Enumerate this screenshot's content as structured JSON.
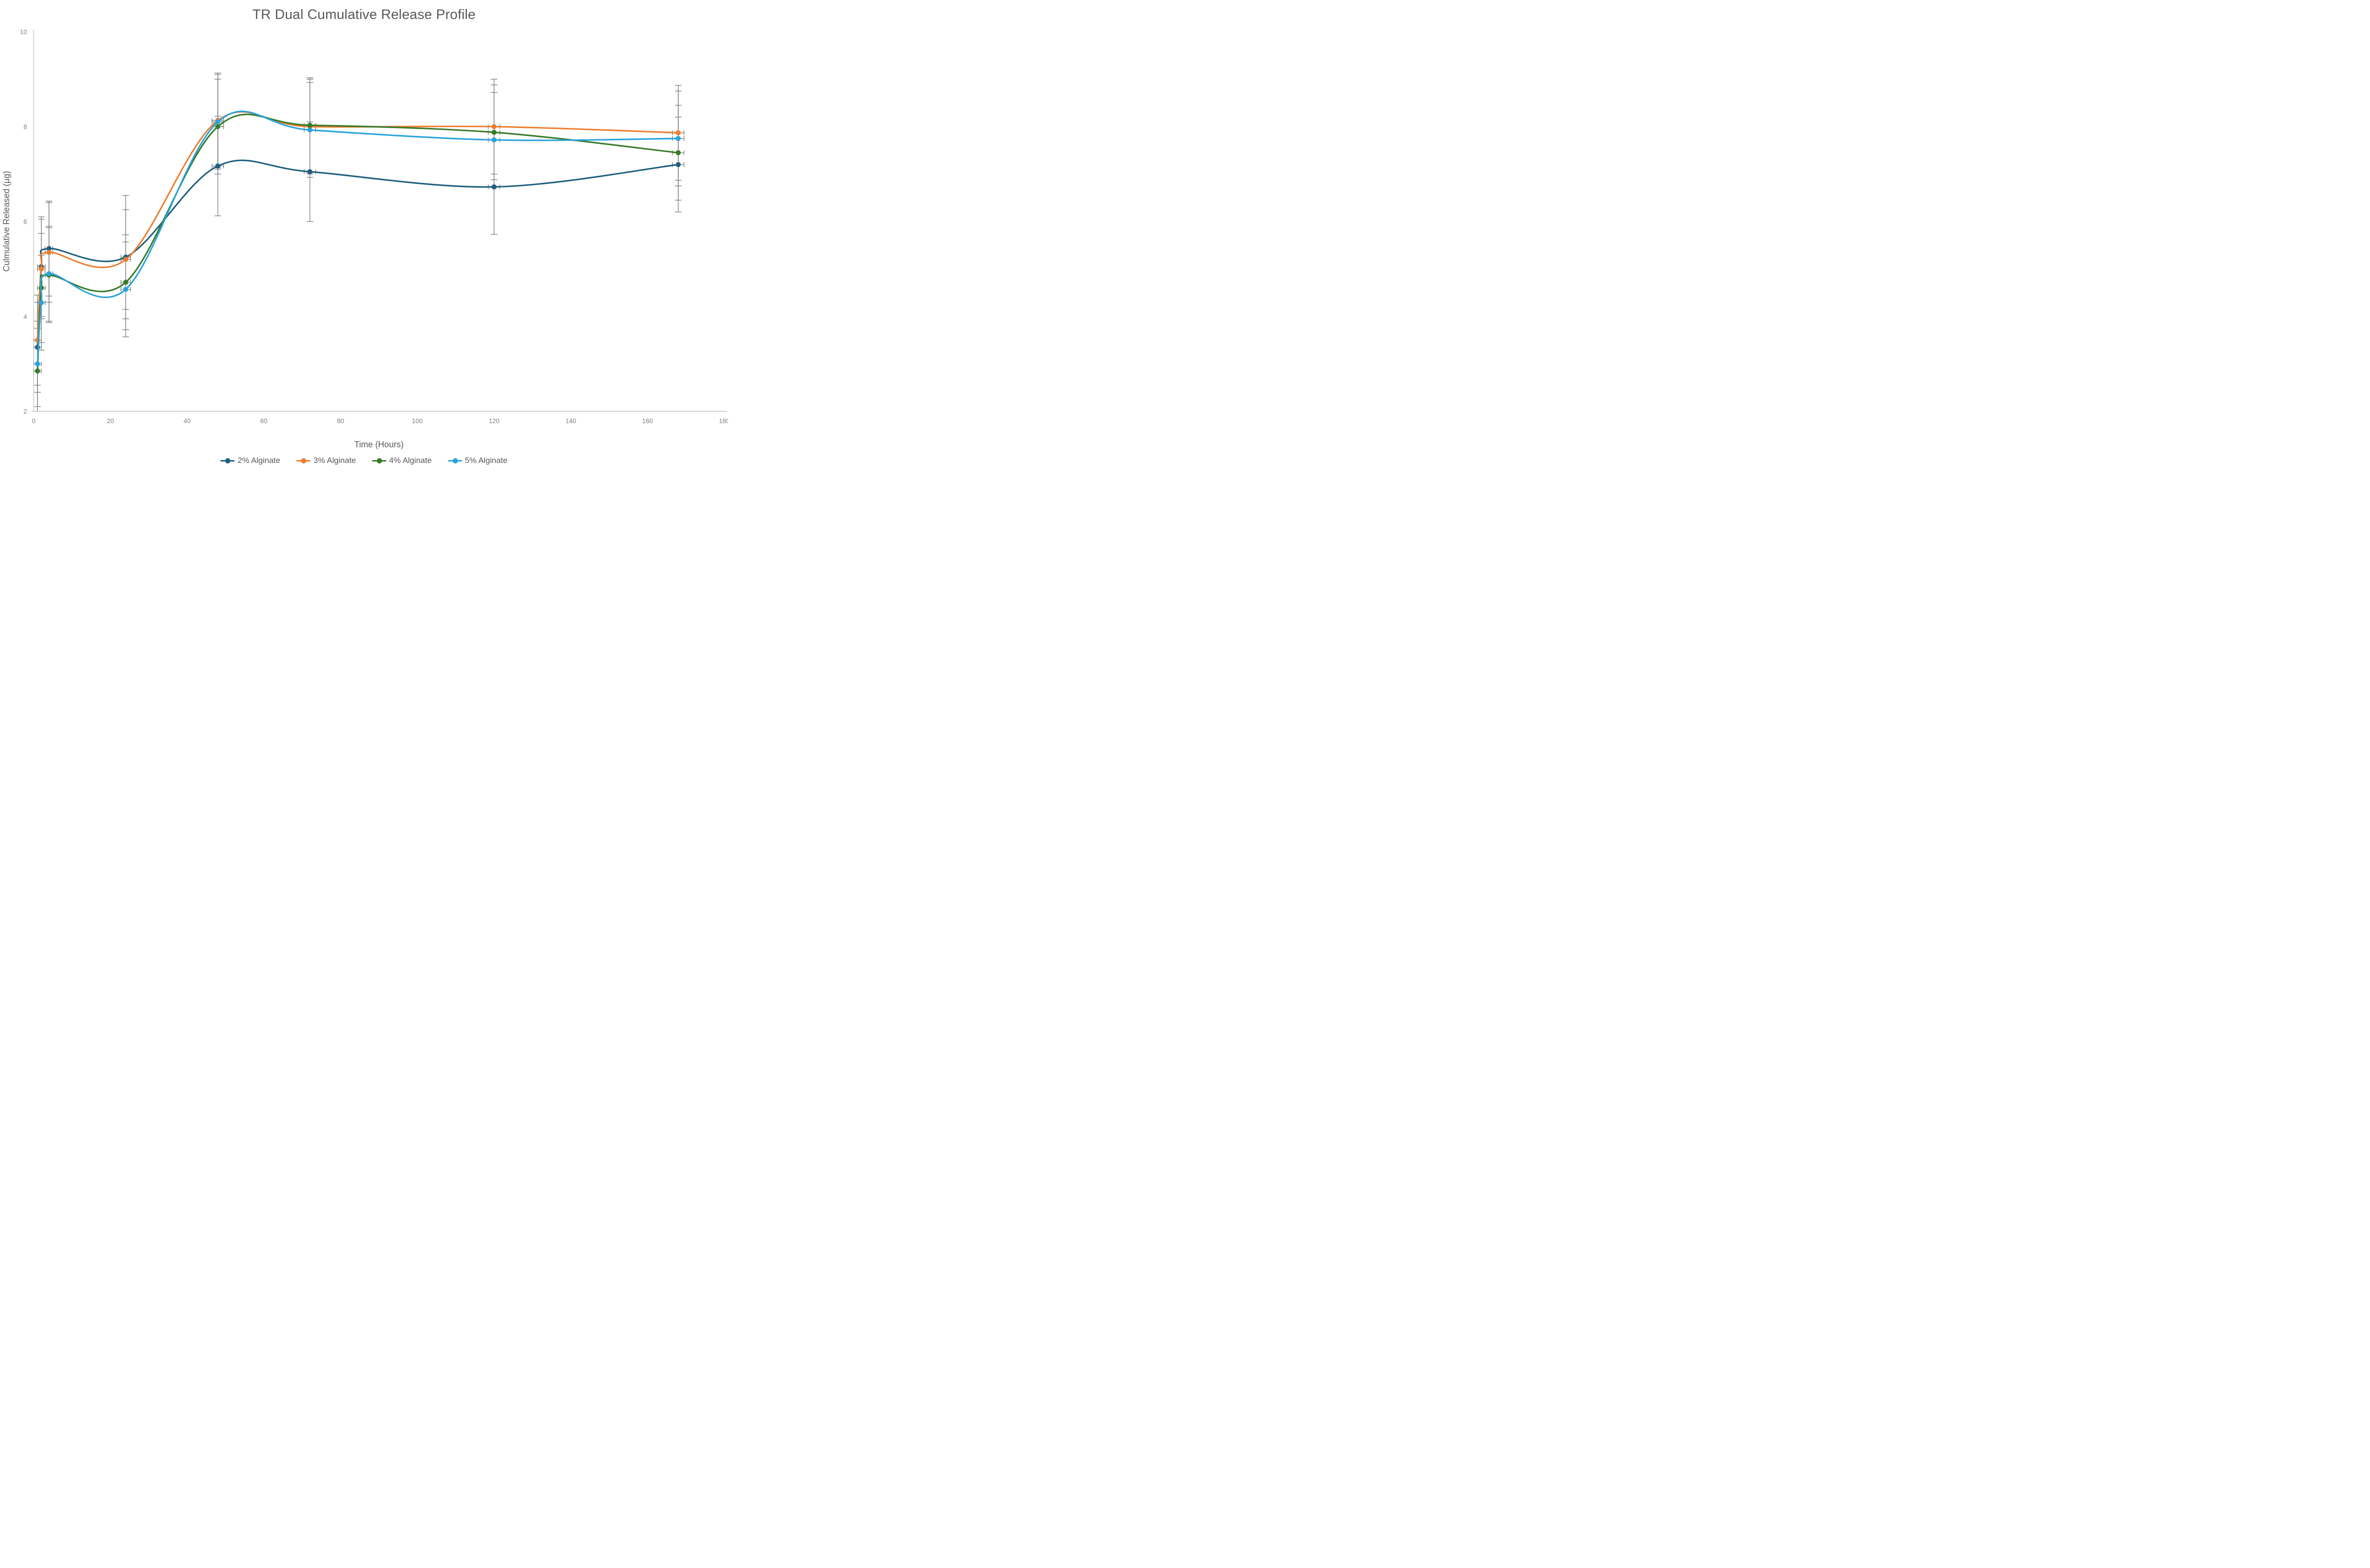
{
  "chart_data": {
    "type": "line",
    "title": "TR Dual Cumulative Release Profile",
    "xlabel": "Time (Hours)",
    "ylabel": "Culmulative Released (µg)",
    "xlim": [
      0,
      180
    ],
    "ylim": [
      2,
      10
    ],
    "x_ticks": [
      0,
      20,
      40,
      60,
      80,
      100,
      120,
      140,
      160,
      180
    ],
    "y_ticks": [
      2,
      4,
      6,
      8,
      10
    ],
    "grid": false,
    "legend_position": "bottom",
    "background_color": "#FFFFFF",
    "axis_line_color": "#D6D6D6",
    "tick_label_color": "#7F7F7F",
    "text_color": "#595959",
    "error_bar_color": "#7F7F7F",
    "x_hours": [
      1,
      2,
      4,
      24,
      48,
      72,
      120,
      168
    ],
    "series": [
      {
        "name": "2% Alginate",
        "color": "#1F5F7F",
        "values": [
          3.35,
          5.05,
          5.43,
          5.25,
          7.17,
          7.05,
          6.73,
          7.2
        ],
        "y_err": [
          0.95,
          1.05,
          1.0,
          1.3,
          1.05,
          1.05,
          1.0,
          1.0
        ],
        "x_err": [
          1.0,
          1.0,
          1.0,
          1.25,
          1.5,
          1.5,
          1.5,
          1.5
        ]
      },
      {
        "name": "3% Alginate",
        "color": "#ED7D31",
        "values": [
          3.5,
          5.0,
          5.35,
          5.2,
          8.13,
          8.0,
          8.0,
          7.87
        ],
        "y_err": [
          0.95,
          1.05,
          1.05,
          1.05,
          1.0,
          1.0,
          1.0,
          1.0
        ],
        "x_err": [
          1.0,
          1.0,
          1.0,
          1.25,
          1.5,
          1.5,
          1.5,
          1.5
        ]
      },
      {
        "name": "4% Alginate",
        "color": "#377B28",
        "values": [
          2.85,
          4.6,
          4.87,
          4.72,
          8.0,
          8.03,
          7.88,
          7.45
        ],
        "y_err": [
          0.9,
          1.15,
          1.0,
          1.0,
          1.0,
          1.0,
          1.0,
          1.0
        ],
        "x_err": [
          1.0,
          1.0,
          1.0,
          1.25,
          1.5,
          1.5,
          1.5,
          1.5
        ]
      },
      {
        "name": "5% Alginate",
        "color": "#29A3DC",
        "values": [
          3.0,
          4.29,
          4.9,
          4.57,
          8.1,
          7.93,
          7.72,
          7.75
        ],
        "y_err": [
          0.9,
          1.0,
          1.0,
          1.0,
          1.0,
          1.0,
          1.0,
          1.0
        ],
        "x_err": [
          1.0,
          1.0,
          1.0,
          1.25,
          1.5,
          1.5,
          1.5,
          1.5
        ]
      }
    ]
  }
}
